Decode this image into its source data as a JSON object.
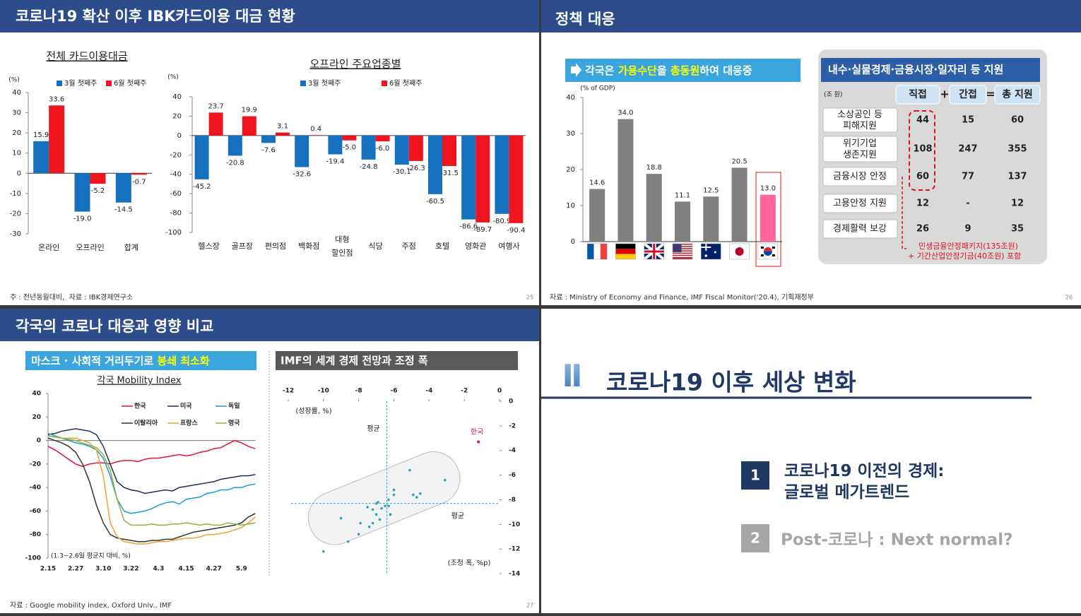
{
  "slides": [
    {
      "title": "코로나19 확산 이후 IBK카드이용 대금 현황",
      "footnote": "주 : 전년동월대비,  자료 : IBK경제연구소",
      "page": 25
    },
    {
      "title": "정책 대응",
      "banner": [
        {
          "text": "각국은 "
        },
        {
          "text": "가용수단",
          "highlight": true
        },
        {
          "text": "을 "
        },
        {
          "text": "총동원",
          "highlight": true
        },
        {
          "text": "하여 대응중"
        }
      ],
      "table": {
        "title": "내수·실물경제·금융시장·일자리 등 지원",
        "unit": "(조 원)",
        "headers": [
          "직접",
          "간접",
          "총 지원"
        ],
        "operators": [
          "+",
          "="
        ],
        "rows": [
          [
            "소상공인 등\n피해지원",
            44,
            15,
            60
          ],
          [
            "위기기업\n생존지원",
            108,
            247,
            355
          ],
          [
            "금융시장 안정",
            60,
            77,
            137
          ],
          [
            "고용안정 지원",
            12,
            "-",
            12
          ],
          [
            "경제활력 보강",
            26,
            9,
            35
          ]
        ],
        "notes": [
          "민생금융안정패키지(135조원)",
          "+ 기간산업안정기금(40조원) 포함"
        ]
      },
      "footnote": "자료 : Ministry of Economy and Finance, IMF Fiscal Monitor('20.4), 기획재정부",
      "page": 26
    },
    {
      "title": "각국의 코로나 대응과 영향 비교",
      "banner": [
        {
          "text": "마스크 · 사회적 거리두기로 "
        },
        {
          "text": "봉쇄 최소화",
          "highlight": true
        }
      ],
      "banner2": "IMF의 세계 경제 전망과 조정 폭",
      "footnote": "자료 : Google mobility index, Oxford Univ., IMF",
      "page": 27
    },
    {
      "numeral": "Ⅱ",
      "title": "코로나19 이후 세상 변화",
      "items": [
        {
          "num": 1,
          "text": "코로나19 이전의 경제:\n글로벌 메가트렌드"
        },
        {
          "num": 2,
          "text": "Post-코로나 : Next normal?"
        }
      ]
    }
  ],
  "chart_data": [
    {
      "type": "bar",
      "title": "전체 카드이용대금",
      "y_label": "(%)",
      "categories": [
        "온라인",
        "오프라인",
        "합계"
      ],
      "series": [
        {
          "name": "3월 첫째주",
          "color": "#1570c0",
          "values": [
            15.9,
            -19.0,
            -14.5
          ],
          "value_labels": [
            "15.9",
            "-19.0",
            "-14.5"
          ]
        },
        {
          "name": "6월 첫째주",
          "color": "#f0141e",
          "values": [
            33.6,
            -5.2,
            -0.7
          ],
          "value_labels": [
            "33.6",
            "-5.2",
            "-0.7"
          ]
        }
      ],
      "ylim": [
        -30,
        40
      ],
      "yticks": [
        -30,
        -20,
        -10,
        0,
        10,
        20,
        30,
        40
      ]
    },
    {
      "type": "bar",
      "title": "오프라인 주요업종별",
      "y_label": "(%)",
      "categories": [
        "헬스장",
        "골프장",
        "편의점",
        "백화점",
        "대형 할인점",
        "식당",
        "주점",
        "호텔",
        "영화관",
        "여행사"
      ],
      "series": [
        {
          "name": "3월 첫째주",
          "color": "#1570c0",
          "values": [
            -45.2,
            -20.8,
            -7.6,
            -32.6,
            -19.4,
            -24.8,
            -30.1,
            -60.5,
            -86.6,
            -80.9
          ],
          "value_labels": [
            "-45.2",
            "-20.8",
            "-7.6",
            "-32.6",
            "-19.4",
            "-24.8",
            "-30.1",
            "-60.5",
            "-86.6",
            "-80.9"
          ]
        },
        {
          "name": "6월 첫째주",
          "color": "#f0141e",
          "values": [
            23.7,
            19.9,
            3.1,
            0.4,
            -5.0,
            -6.0,
            -26.3,
            -31.5,
            -89.7,
            -90.4
          ],
          "value_labels": [
            "23.7",
            "19.9",
            "3.1",
            "0.4",
            "-5.0",
            "-6.0",
            "-26.3",
            "-31.5",
            "-89.7",
            "-90.4"
          ]
        }
      ],
      "ylim": [
        -100,
        40
      ],
      "yticks": [
        -100,
        -80,
        -60,
        -40,
        -20,
        0,
        20,
        40
      ]
    },
    {
      "type": "bar",
      "y_label": "(% of GDP)",
      "categories": [
        null,
        null,
        null,
        null,
        null,
        null,
        null
      ],
      "values": [
        14.6,
        34.0,
        18.8,
        11.1,
        12.5,
        20.5,
        13.0
      ],
      "value_labels": [
        "14.6",
        "34.0",
        "18.8",
        "11.1",
        "12.5",
        "20.5",
        "13.0"
      ],
      "colors": [
        "#808080",
        "#808080",
        "#808080",
        "#808080",
        "#808080",
        "#808080",
        "#ff6699"
      ],
      "ylim": [
        0,
        40
      ],
      "yticks": [
        0,
        10,
        20,
        30,
        40
      ]
    },
    {
      "type": "line",
      "title": "각국 Mobility Index",
      "note": "(1.3~2.6일 평균치 대비, %)",
      "categories": [
        "2.15",
        null,
        null,
        null,
        "2.27",
        null,
        null,
        null,
        "3.10",
        null,
        null,
        null,
        "3.22",
        null,
        null,
        null,
        "4.3",
        null,
        null,
        null,
        "4.15",
        null,
        null,
        null,
        "4.27",
        null,
        null,
        null,
        "5.9",
        null,
        null
      ],
      "series": [
        {
          "name": "한국",
          "color": "#e0143c",
          "values": [
            -5,
            -8,
            -12,
            -16,
            -20,
            -22,
            -20,
            -19,
            -19,
            -20,
            -18,
            -17,
            -17,
            -18,
            -16,
            -15,
            -15,
            -14,
            -13,
            -12,
            -13,
            -12,
            -10,
            -9,
            -7,
            -6,
            -3,
            0,
            -2,
            -5,
            -7
          ]
        },
        {
          "name": "미국",
          "color": "#1f2f5a",
          "values": [
            5,
            6,
            8,
            9,
            10,
            9,
            8,
            5,
            -5,
            -20,
            -35,
            -40,
            -42,
            -43,
            -45,
            -44,
            -43,
            -42,
            -43,
            -40,
            -39,
            -38,
            -37,
            -36,
            -35,
            -33,
            -32,
            -31,
            -30,
            -30,
            -29
          ]
        },
        {
          "name": "독일",
          "color": "#1a9bd7",
          "values": [
            6,
            4,
            2,
            0,
            -2,
            -3,
            -5,
            -8,
            -15,
            -30,
            -50,
            -60,
            -62,
            -61,
            -60,
            -58,
            -55,
            -53,
            -52,
            -54,
            -50,
            -49,
            -48,
            -45,
            -44,
            -42,
            -42,
            -40,
            -40,
            -38,
            -37
          ]
        },
        {
          "name": "이탈리아",
          "color": "#333333",
          "values": [
            2,
            0,
            -2,
            -5,
            -10,
            -20,
            -35,
            -55,
            -70,
            -80,
            -83,
            -84,
            -85,
            -86,
            -86,
            -85,
            -85,
            -84,
            -84,
            -82,
            -80,
            -78,
            -77,
            -76,
            -75,
            -74,
            -73,
            -72,
            -70,
            -65,
            -62
          ]
        },
        {
          "name": "프랑스",
          "color": "#f0a030",
          "values": [
            4,
            3,
            2,
            2,
            2,
            0,
            -2,
            -8,
            -30,
            -70,
            -82,
            -86,
            -87,
            -88,
            -88,
            -87,
            -86,
            -86,
            -85,
            -84,
            -83,
            -83,
            -82,
            -80,
            -80,
            -79,
            -78,
            -76,
            -74,
            -70,
            -65
          ]
        },
        {
          "name": "영국",
          "color": "#8cb43c",
          "values": [
            4,
            3,
            2,
            1,
            0,
            -2,
            -4,
            -6,
            -12,
            -25,
            -50,
            -68,
            -72,
            -72,
            -72,
            -71,
            -72,
            -72,
            -71,
            -71,
            -70,
            -71,
            -72,
            -71,
            -72,
            -72,
            -70,
            -71,
            -72,
            -71,
            -70
          ]
        }
      ],
      "ylim": [
        -100,
        40
      ],
      "yticks": [
        -100,
        -80,
        -60,
        -40,
        -20,
        0,
        20,
        40
      ]
    },
    {
      "type": "scatter",
      "y_label": "(성장률, %)",
      "x_label": "(조정 폭, %p)",
      "mean_label": "평균",
      "x": [
        -3.1,
        -5.1,
        -4.5,
        -4.7,
        -4.9,
        -6.0,
        -6.0,
        -6.3,
        -6.9,
        -7.0,
        -6.5,
        -6.7,
        -7.2,
        -7.0,
        -6.8,
        -7.2,
        -7.4,
        -6.2,
        -6.3,
        -7.9,
        -8.0,
        -8.6,
        -9.0,
        -10.0,
        -7.5
      ],
      "values": [
        -6.4,
        -5.6,
        -7.5,
        -7.8,
        -7.6,
        -7.2,
        -7.6,
        -8.0,
        -8.2,
        -8.3,
        -8.5,
        -8.7,
        -8.8,
        -9.2,
        -9.6,
        -9.9,
        -10.2,
        -9.2,
        -8.5,
        -9.9,
        -10.8,
        -11.4,
        -9.5,
        -12.2,
        -8.6
      ],
      "color": "#2aa3b8",
      "highlight": {
        "label": "한국",
        "x": -1.2,
        "y": -3.3,
        "color": "#e0143c"
      },
      "mean_x": -6.4,
      "mean_y": -8.3,
      "xlim": [
        -12,
        0
      ],
      "ylim": [
        -14,
        0
      ],
      "xticks": [
        -12,
        -10,
        -8,
        -6,
        -4,
        -2,
        0
      ],
      "yticks": [
        -14,
        -12,
        -10,
        -8,
        -6,
        -4,
        -2,
        0
      ]
    }
  ]
}
